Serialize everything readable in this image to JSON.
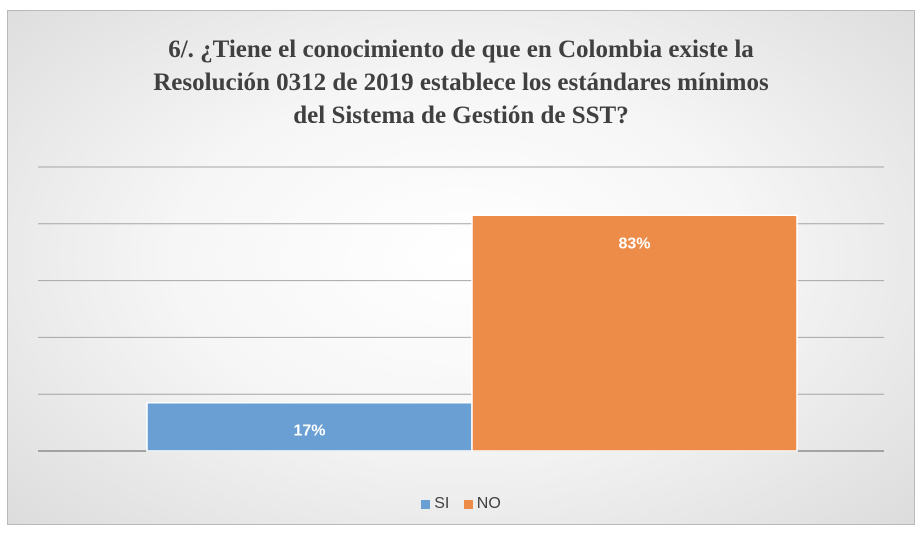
{
  "chart_data": {
    "type": "bar",
    "title_lines": [
      "6/. ¿Tiene el conocimiento de que en Colombia existe la",
      "Resolución 0312 de 2019 establece los estándares mínimos",
      "del Sistema de Gestión de SST?"
    ],
    "categories": [
      "SI",
      "NO"
    ],
    "series": [
      {
        "name": "SI",
        "value": 17,
        "label": "17%",
        "color": "#6a9fd4"
      },
      {
        "name": "NO",
        "value": 83,
        "label": "83%",
        "color": "#ec8c48"
      }
    ],
    "ylim": [
      0,
      100
    ],
    "gridlines": true,
    "legend_position": "bottom",
    "xlabel": "",
    "ylabel": ""
  }
}
